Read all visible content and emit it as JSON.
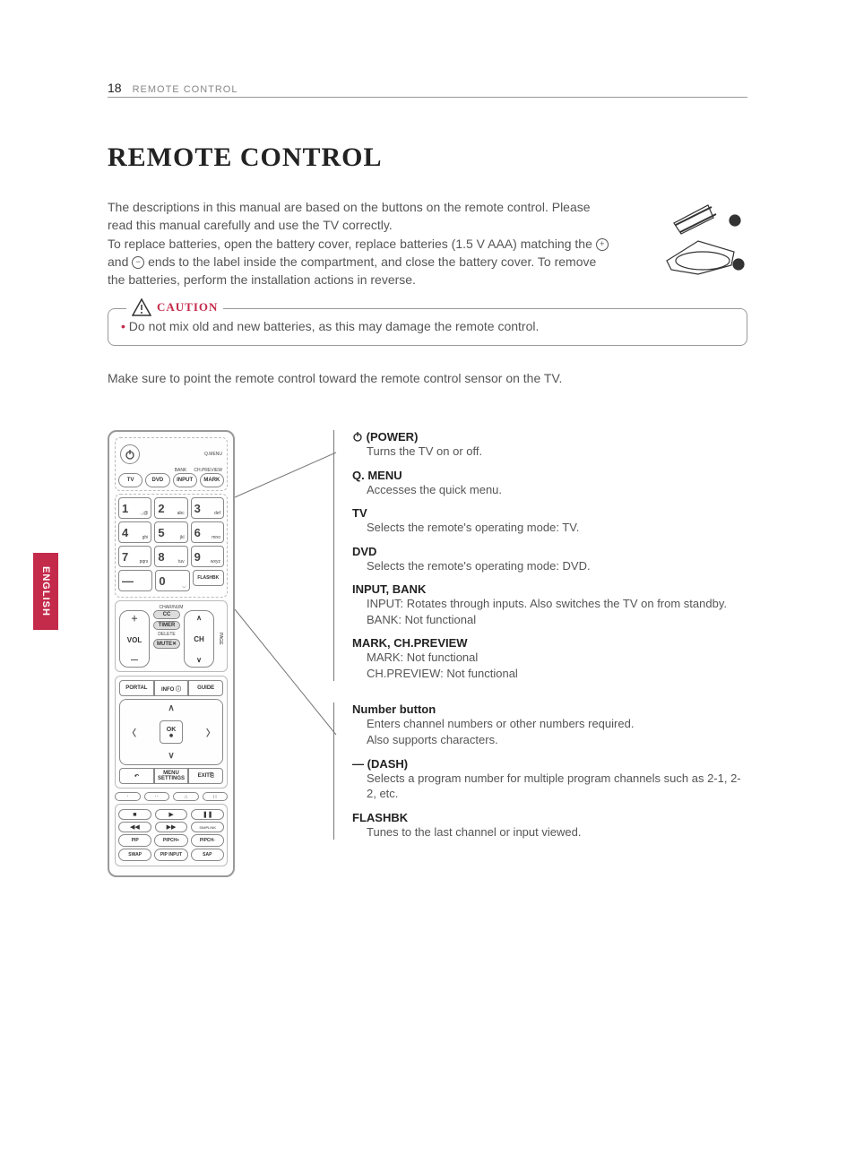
{
  "header": {
    "page_number": "18",
    "section": "REMOTE CONTROL"
  },
  "title": "REMOTE CONTROL",
  "intro": {
    "p1": "The descriptions in this manual are based on the buttons on the remote control. Please read this manual carefully and use the TV correctly.",
    "p2a": "To replace batteries, open the battery cover, replace batteries (1.5 V AAA) matching the ",
    "p2b": " and ",
    "p2c": " ends to the label inside the compartment, and close the battery cover. To remove the batteries, perform the installation actions in reverse."
  },
  "caution": {
    "label": "CAUTION",
    "text": "Do not mix old and new batteries, as this may damage the remote control."
  },
  "note": "Make sure to point the remote control toward the remote control sensor on the TV.",
  "english_tab": "ENGLISH",
  "remote": {
    "qmenu": "Q.MENU",
    "bank": "BANK",
    "chpreview": "CH.PREVIEW",
    "mode_row": [
      "TV",
      "DVD",
      "INPUT",
      "MARK"
    ],
    "numpad": [
      {
        "n": "1",
        "s": ".,;@"
      },
      {
        "n": "2",
        "s": "abc"
      },
      {
        "n": "3",
        "s": "def"
      },
      {
        "n": "4",
        "s": "ghi"
      },
      {
        "n": "5",
        "s": "jkl"
      },
      {
        "n": "6",
        "s": "mno"
      },
      {
        "n": "7",
        "s": "pqrs"
      },
      {
        "n": "8",
        "s": "tuv"
      },
      {
        "n": "9",
        "s": "wxyz"
      },
      {
        "n": "—",
        "s": ""
      },
      {
        "n": "0",
        "s": "◡"
      },
      {
        "n": "FLASHBK",
        "s": ""
      }
    ],
    "charnum": "CHAR/NUM",
    "cc": "CC",
    "timer": "TIMER",
    "delete": "DELETE",
    "mute": "MUTE",
    "vol": "VOL",
    "ch": "CH",
    "page": "PAGE",
    "portal": "PORTAL",
    "info": "INFO ⓘ",
    "guide": "GUIDE",
    "ok": "OK",
    "back_icon": "↶",
    "menu": "MENU",
    "settings": "SETTINGS",
    "exit": "EXIT",
    "media": [
      "■",
      "▶",
      "❚❚",
      "◀◀",
      "▶▶",
      "SIMPLINK"
    ],
    "pip": [
      "PIP",
      "PIPCH+",
      "PIPCH-"
    ],
    "swap": [
      "SWAP",
      "PIP INPUT",
      "SAP"
    ]
  },
  "descriptions_a": [
    {
      "title": "(POWER)",
      "body": "Turns the TV on or off.",
      "icon": true
    },
    {
      "title": "Q. MENU",
      "body": "Accesses the quick menu."
    },
    {
      "title": "TV",
      "body": "Selects the remote's operating mode: TV."
    },
    {
      "title": "DVD",
      "body": "Selects the remote's operating mode: DVD."
    },
    {
      "title": "INPUT, BANK",
      "body": "INPUT: Rotates through inputs. Also switches the TV on from standby.\nBANK: Not functional"
    },
    {
      "title": "MARK, CH.PREVIEW",
      "body": "MARK: Not functional\nCH.PREVIEW: Not functional"
    }
  ],
  "descriptions_b": [
    {
      "title": "Number button",
      "body": "Enters channel numbers or other numbers required.\nAlso supports characters."
    },
    {
      "title": "— (DASH)",
      "body": "Selects a program number for multiple program channels such as 2-1, 2-2, etc."
    },
    {
      "title": "FLASHBK",
      "body": "Tunes to the last channel or input viewed."
    }
  ],
  "colors": {
    "accent": "#c42a4a",
    "text": "#555",
    "border": "#999"
  }
}
